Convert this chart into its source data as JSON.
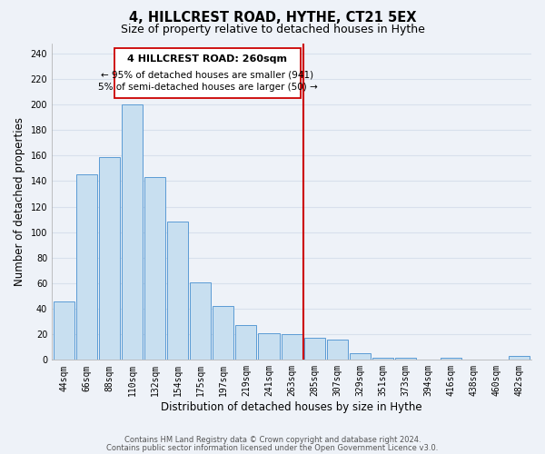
{
  "title": "4, HILLCREST ROAD, HYTHE, CT21 5EX",
  "subtitle": "Size of property relative to detached houses in Hythe",
  "xlabel": "Distribution of detached houses by size in Hythe",
  "ylabel": "Number of detached properties",
  "bar_labels": [
    "44sqm",
    "66sqm",
    "88sqm",
    "110sqm",
    "132sqm",
    "154sqm",
    "175sqm",
    "197sqm",
    "219sqm",
    "241sqm",
    "263sqm",
    "285sqm",
    "307sqm",
    "329sqm",
    "351sqm",
    "373sqm",
    "394sqm",
    "416sqm",
    "438sqm",
    "460sqm",
    "482sqm"
  ],
  "bar_values": [
    46,
    145,
    159,
    200,
    143,
    108,
    61,
    42,
    27,
    21,
    20,
    17,
    16,
    5,
    2,
    2,
    0,
    2,
    0,
    0,
    3
  ],
  "bar_color": "#c8dff0",
  "bar_edge_color": "#5b9bd5",
  "marker_index": 10,
  "vline_color": "#cc0000",
  "annotation_title": "4 HILLCREST ROAD: 260sqm",
  "annotation_line1": "← 95% of detached houses are smaller (941)",
  "annotation_line2": "5% of semi-detached houses are larger (50) →",
  "annotation_box_edge": "#cc0000",
  "ylim": [
    0,
    248
  ],
  "yticks": [
    0,
    20,
    40,
    60,
    80,
    100,
    120,
    140,
    160,
    180,
    200,
    220,
    240
  ],
  "footer1": "Contains HM Land Registry data © Crown copyright and database right 2024.",
  "footer2": "Contains public sector information licensed under the Open Government Licence v3.0.",
  "bg_color": "#eef2f8",
  "grid_color": "#d8e0ec",
  "title_fontsize": 10.5,
  "subtitle_fontsize": 9,
  "label_fontsize": 8.5,
  "tick_fontsize": 7,
  "footer_fontsize": 6,
  "ann_title_fontsize": 8,
  "ann_text_fontsize": 7.5
}
